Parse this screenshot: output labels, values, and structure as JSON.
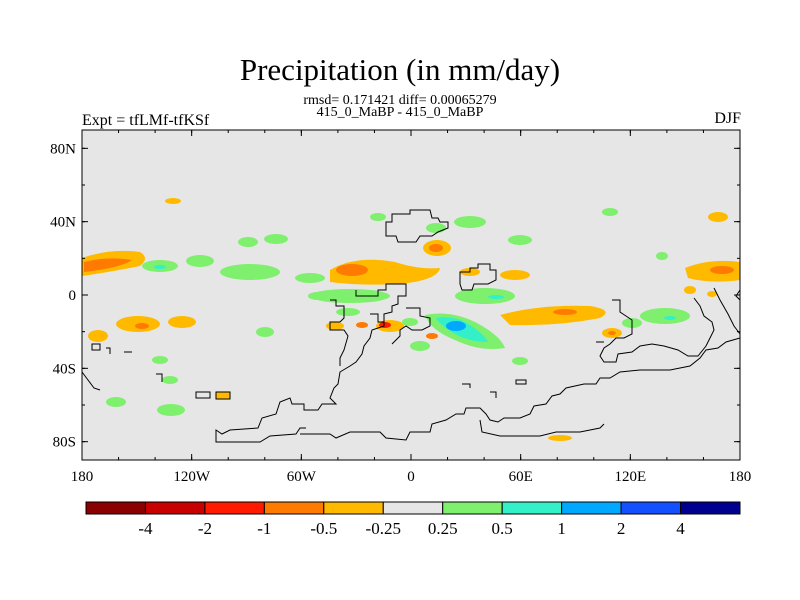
{
  "title": "Precipitation (in mm/day)",
  "stats_line": "rmsd= 0.171421 diff= 0.00065279",
  "cases_line": "415_0_MaBP - 415_0_MaBP",
  "experiment_label": "Expt = tfLMf-tfKSf",
  "season_label": "DJF",
  "axes": {
    "lat_ticks": [
      {
        "value": 80,
        "label": "80N"
      },
      {
        "value": 40,
        "label": "40N"
      },
      {
        "value": 0,
        "label": "0"
      },
      {
        "value": -40,
        "label": "40S"
      },
      {
        "value": -80,
        "label": "80S"
      }
    ],
    "lon_ticks": [
      {
        "value": -180,
        "label": "180"
      },
      {
        "value": -120,
        "label": "120W"
      },
      {
        "value": -60,
        "label": "60W"
      },
      {
        "value": 0,
        "label": "0"
      },
      {
        "value": 60,
        "label": "60E"
      },
      {
        "value": 120,
        "label": "120E"
      },
      {
        "value": 180,
        "label": "180"
      }
    ],
    "lon_range": [
      -180,
      180
    ],
    "lat_range": [
      -90,
      90
    ]
  },
  "colorbar": {
    "colors": [
      "#8b0000",
      "#c80000",
      "#ff1a00",
      "#ff7a00",
      "#ffba00",
      "#e6e6e6",
      "#7fef6e",
      "#33f0c8",
      "#00a8ff",
      "#1450ff",
      "#000090"
    ],
    "labels": [
      "-4",
      "-2",
      "-1",
      "-0.5",
      "-0.25",
      "0.25",
      "0.5",
      "1",
      "2",
      "4"
    ]
  },
  "background_color": "#e6e6e6"
}
